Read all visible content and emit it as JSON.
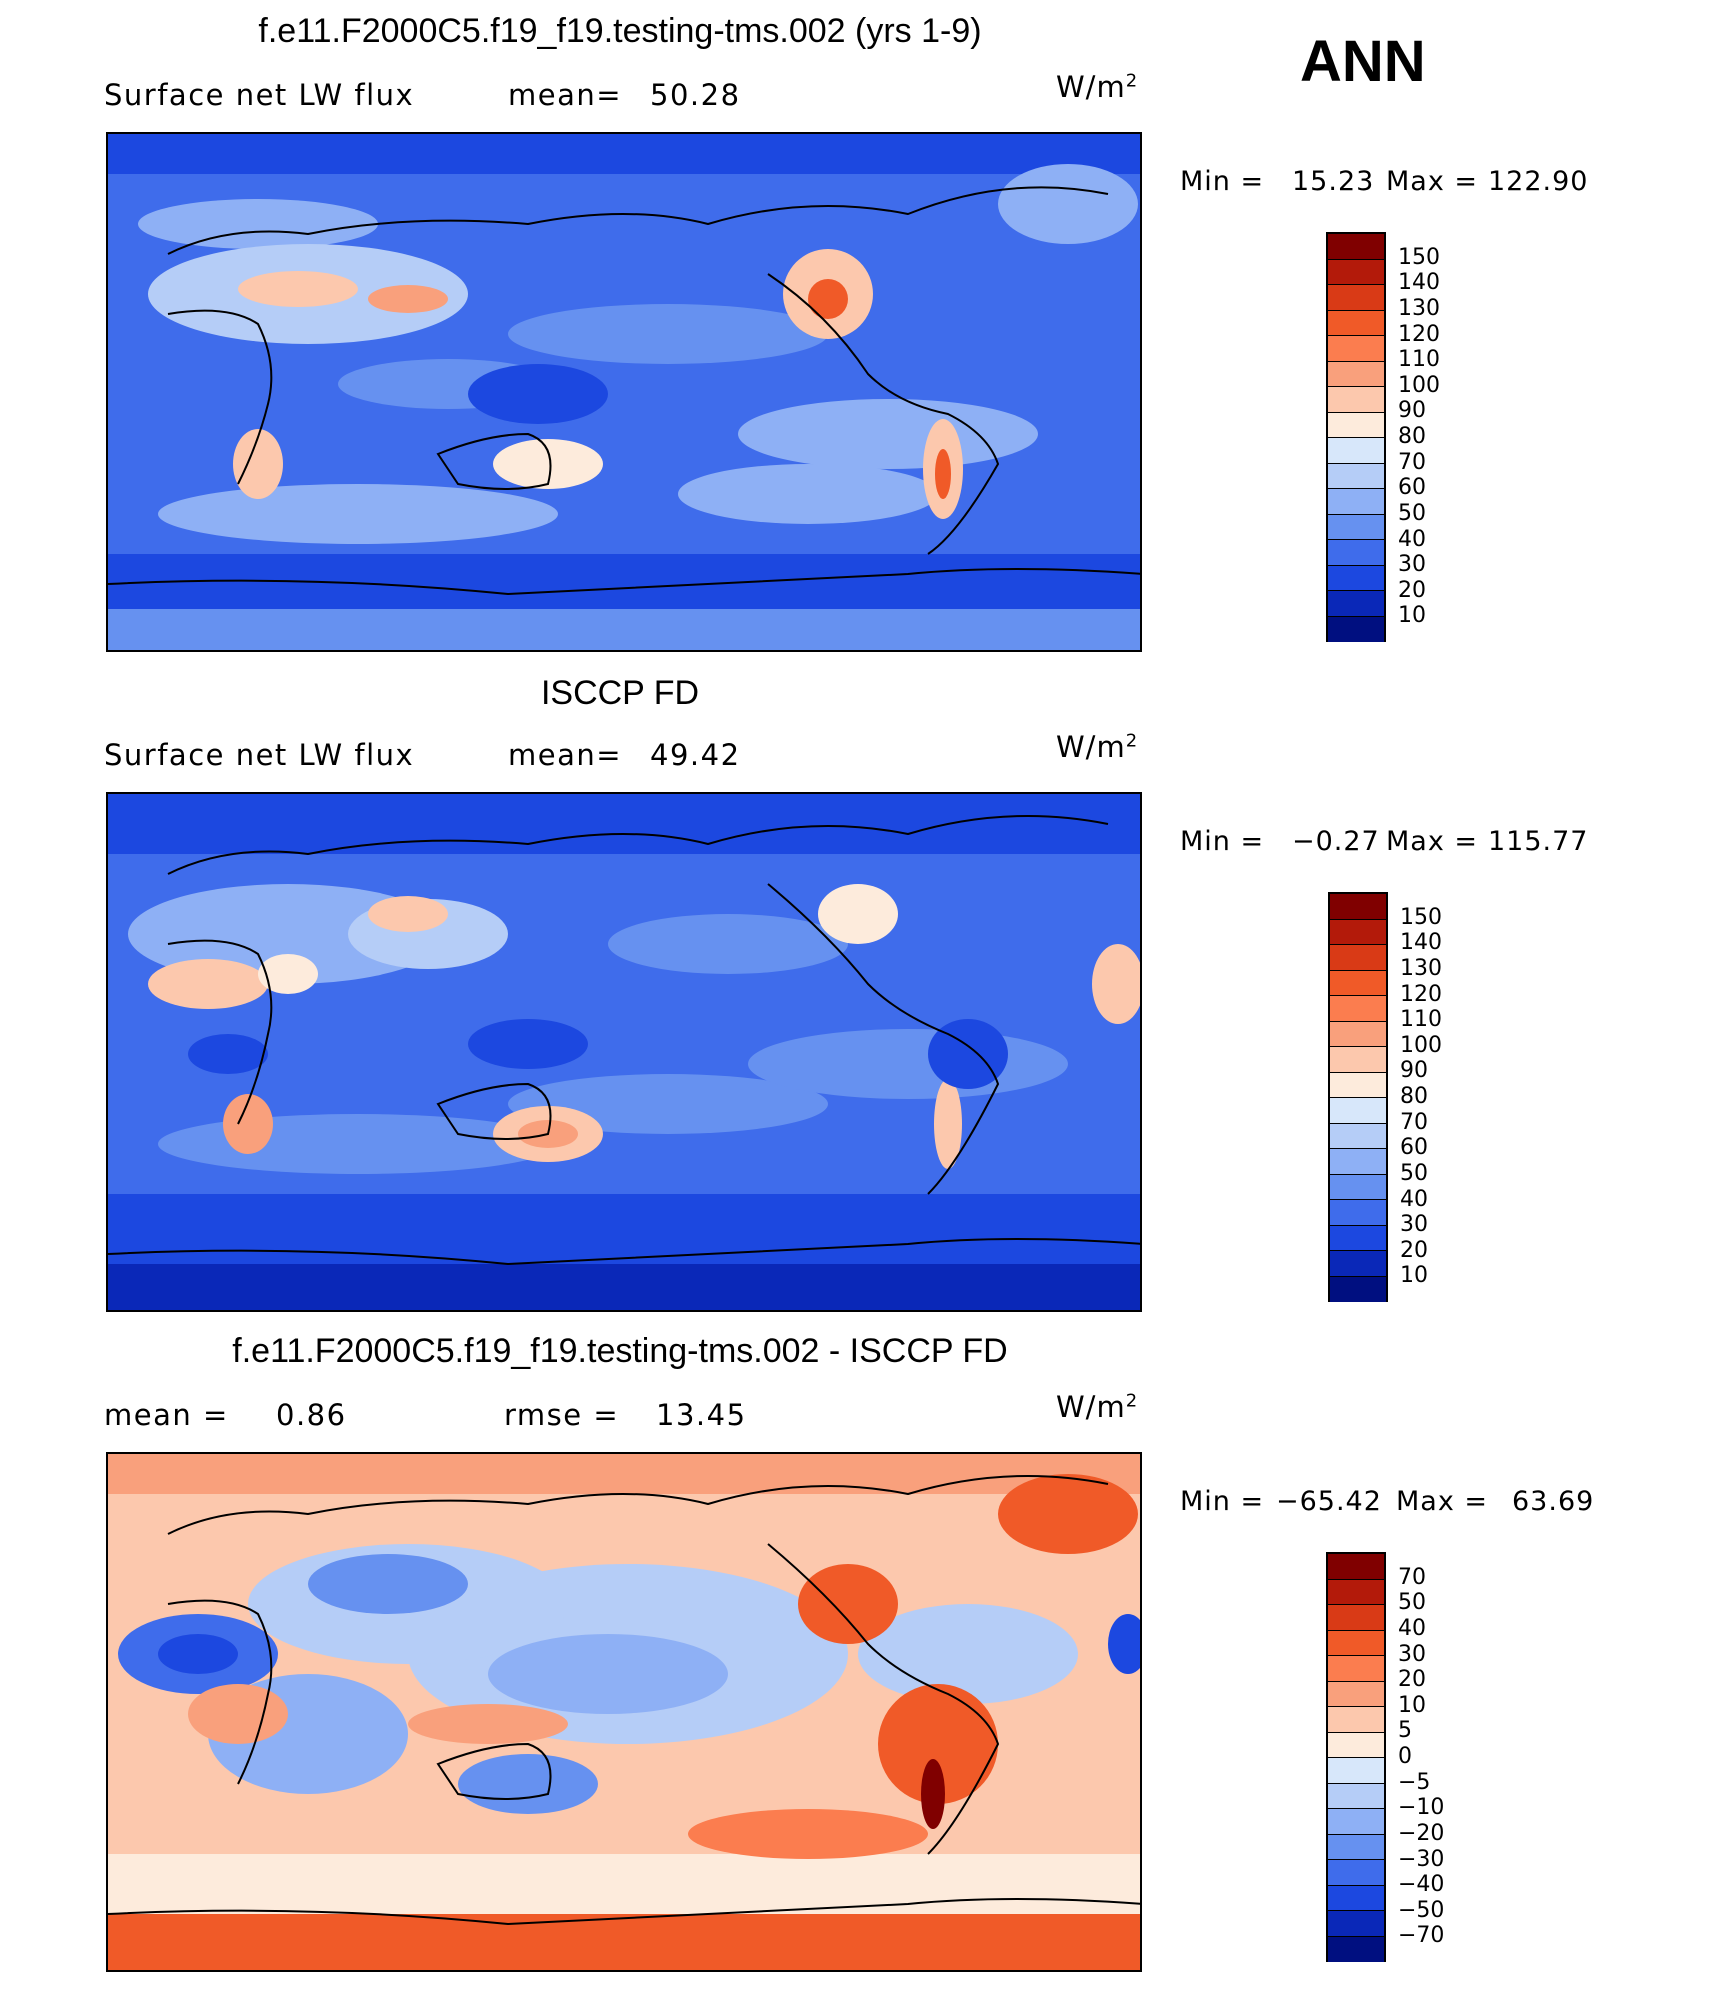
{
  "season": "ANN",
  "panels": [
    {
      "title": "f.e11.F2000C5.f19_f19.testing-tms.002 (yrs 1-9)",
      "left_label": "Surface net LW flux",
      "stat_label": "mean=",
      "stat_value": "50.28",
      "units": "W/m",
      "units_sup": "2",
      "min_label": "Min =",
      "min_value": "15.23",
      "max_label": "Max =",
      "max_value": "122.90",
      "colorbar_labels": [
        "150",
        "140",
        "130",
        "120",
        "110",
        "100",
        "90",
        "80",
        "70",
        "60",
        "50",
        "40",
        "30",
        "20",
        "10"
      ]
    },
    {
      "title": "ISCCP FD",
      "left_label": "Surface net LW flux",
      "stat_label": "mean=",
      "stat_value": "49.42",
      "units": "W/m",
      "units_sup": "2",
      "min_label": "Min =",
      "min_value": "−0.27",
      "max_label": "Max =",
      "max_value": "115.77",
      "colorbar_labels": [
        "150",
        "140",
        "130",
        "120",
        "110",
        "100",
        "90",
        "80",
        "70",
        "60",
        "50",
        "40",
        "30",
        "20",
        "10"
      ]
    },
    {
      "title": "f.e11.F2000C5.f19_f19.testing-tms.002 - ISCCP FD",
      "left_label": "mean =",
      "left_value": "0.86",
      "stat_label": "rmse =",
      "stat_value": "13.45",
      "units": "W/m",
      "units_sup": "2",
      "min_label": "Min =",
      "min_value": "−65.42",
      "max_label": "Max =",
      "max_value": "63.69",
      "colorbar_labels": [
        "70",
        "50",
        "40",
        "30",
        "20",
        "10",
        "5",
        "0",
        "−5",
        "−10",
        "−20",
        "−30",
        "−40",
        "−50",
        "−70"
      ]
    }
  ],
  "colors": {
    "scale": [
      "#800000",
      "#b31a0a",
      "#d93a16",
      "#f05a28",
      "#fb7d4f",
      "#f9a07c",
      "#fcc8ad",
      "#fdebdc",
      "#d7e7fa",
      "#b5cdf7",
      "#8eb0f5",
      "#6691f0",
      "#3f6ceb",
      "#1c48e0",
      "#0a28b8",
      "#000f80"
    ]
  }
}
